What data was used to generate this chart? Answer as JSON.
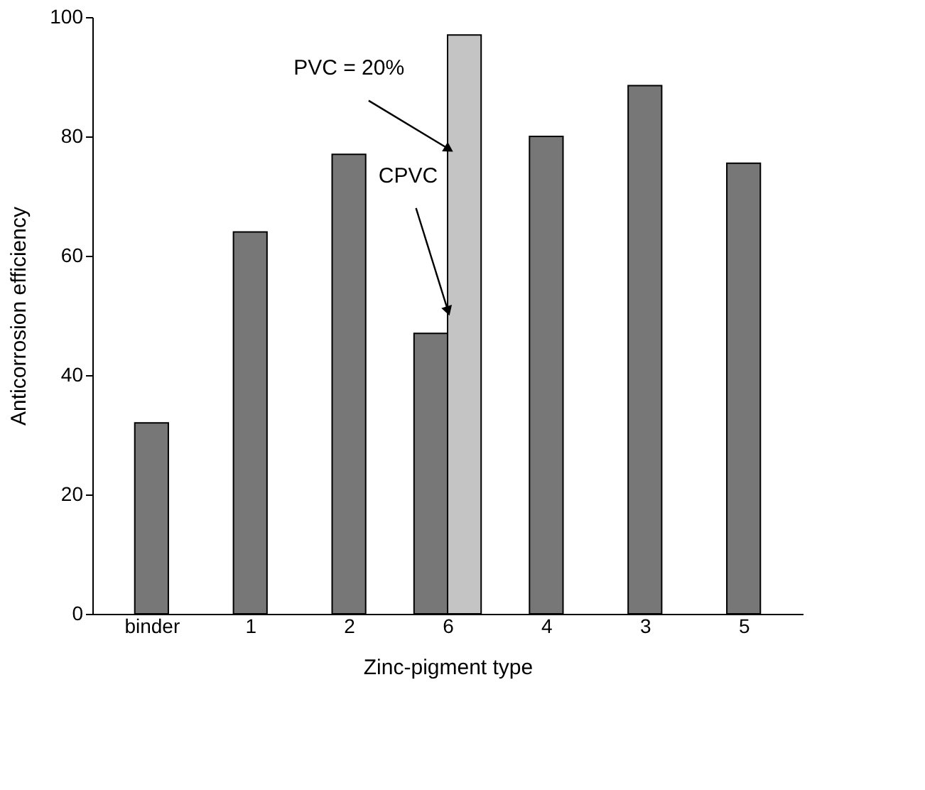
{
  "chart_data": {
    "type": "bar",
    "xlabel": "Zinc-pigment type",
    "ylabel": "Anticorrosion efficiency",
    "categories": [
      "binder",
      "1",
      "2",
      "6",
      "4",
      "3",
      "5"
    ],
    "series": [
      {
        "color": "#777777",
        "values": [
          32,
          64,
          77,
          47,
          80,
          88.5,
          75.5
        ]
      },
      {
        "color": "#c4c4c4",
        "values": [
          null,
          null,
          null,
          97,
          null,
          null,
          null
        ]
      }
    ],
    "annotations": [
      {
        "text": "CPVC",
        "x": "6",
        "y": 51
      },
      {
        "text": "PVC = 20%",
        "x": "6",
        "y": 78
      }
    ],
    "ylim": [
      0,
      100
    ],
    "yticks": [
      0,
      20,
      40,
      60,
      80,
      100
    ],
    "grid": false
  }
}
